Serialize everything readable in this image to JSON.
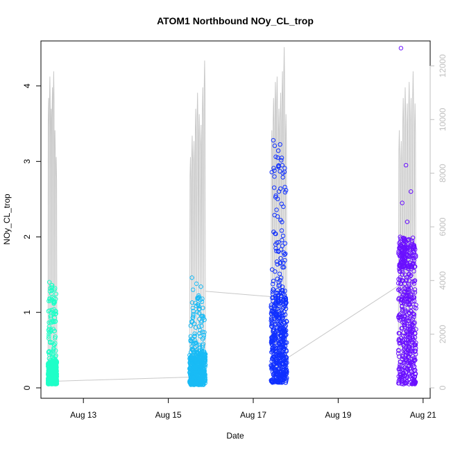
{
  "chart_data": {
    "type": "scatter",
    "title": "ATOM1 Northbound NOy_CL_trop",
    "xlabel": "Date",
    "ylabel": "NOy_CL_trop",
    "x_axis": {
      "type": "date",
      "range": [
        "2016-08-12T00:00",
        "2016-08-21T04:00"
      ],
      "ticks": [
        {
          "value": "2016-08-13",
          "label": "Aug 13"
        },
        {
          "value": "2016-08-15",
          "label": "Aug 15"
        },
        {
          "value": "2016-08-17",
          "label": "Aug 17"
        },
        {
          "value": "2016-08-19",
          "label": "Aug 19"
        },
        {
          "value": "2016-08-21",
          "label": "Aug 21"
        }
      ]
    },
    "y_axis": {
      "range": [
        0,
        4.55
      ],
      "ticks": [
        {
          "value": 0,
          "label": "0"
        },
        {
          "value": 1,
          "label": "1"
        },
        {
          "value": 2,
          "label": "2"
        },
        {
          "value": 3,
          "label": "3"
        },
        {
          "value": 4,
          "label": "4"
        }
      ]
    },
    "y2_axis": {
      "color": "#bfbfbf",
      "range": [
        0,
        12800
      ],
      "ticks": [
        {
          "value": 0,
          "label": "0"
        },
        {
          "value": 2000,
          "label": "2000"
        },
        {
          "value": 4000,
          "label": "4000"
        },
        {
          "value": 6000,
          "label": "6000"
        },
        {
          "value": 8000,
          "label": "8000"
        },
        {
          "value": 10000,
          "label": "10000"
        },
        {
          "value": 12000,
          "label": "12000"
        }
      ]
    },
    "series": [
      {
        "kind": "altitude-line",
        "axis": "y2",
        "color": "#c8c8c8",
        "segments": [
          {
            "t0": "2016-08-12T04:00",
            "t1": "2016-08-12T09:00",
            "peaks": [
              10800,
              11600,
              10400,
              11200,
              11800,
              9600,
              8600
            ]
          },
          {
            "t0": "2016-08-15T12:00",
            "t1": "2016-08-15T21:00",
            "peaks": [
              8600,
              9400,
              9200,
              10400,
              11000,
              10200,
              9800,
              11200,
              12200
            ]
          },
          {
            "t0": "2016-08-17T10:00",
            "t1": "2016-08-17T19:00",
            "peaks": [
              9600,
              10800,
              11400,
              11600,
              10400,
              11000,
              11800,
              12700,
              10200
            ]
          },
          {
            "t0": "2016-08-20T10:00",
            "t1": "2016-08-20T20:00",
            "peaks": [
              9600,
              9200,
              10800,
              11200,
              10600,
              11400,
              10800,
              11800,
              10600
            ]
          }
        ],
        "connectors": [
          {
            "x0": "2016-08-12T09:00",
            "y0": 250,
            "x1": "2016-08-15T12:00",
            "y1": 400
          },
          {
            "x0": "2016-08-15T21:00",
            "y0": 3600,
            "x1": "2016-08-17T10:00",
            "y1": 3400
          },
          {
            "x0": "2016-08-17T19:00",
            "y0": 1100,
            "x1": "2016-08-20T10:00",
            "y1": 3800
          }
        ]
      },
      {
        "kind": "points",
        "axis": "y",
        "color": "#1fffc8",
        "t0": "2016-08-12T04:00",
        "t1": "2016-08-12T09:00",
        "base": [
          0.05,
          0.35
        ],
        "upper": [
          0.35,
          1.38
        ],
        "outliers": [
          1.4,
          1.33,
          1.3,
          1.28,
          1.2,
          1.14,
          0.95,
          0.88
        ]
      },
      {
        "kind": "points",
        "axis": "y",
        "color": "#19bbf5",
        "t0": "2016-08-15T12:00",
        "t1": "2016-08-15T21:00",
        "base": [
          0.04,
          0.45
        ],
        "upper": [
          0.45,
          1.25
        ],
        "outliers": [
          1.46,
          1.38,
          1.34,
          1.3,
          1.18,
          0.95,
          0.85
        ]
      },
      {
        "kind": "points",
        "axis": "y",
        "color": "#1030ff",
        "t0": "2016-08-17T10:00",
        "t1": "2016-08-17T19:00",
        "base": [
          0.07,
          1.2
        ],
        "upper": [
          1.2,
          3.3
        ],
        "outliers": [
          3.28,
          3.05,
          2.95,
          2.8,
          2.6,
          2.4,
          1.9,
          1.65
        ]
      },
      {
        "kind": "points",
        "axis": "y",
        "color": "#6a10ff",
        "t0": "2016-08-20T10:00",
        "t1": "2016-08-20T20:00",
        "base": [
          0.05,
          1.9
        ],
        "upper": [
          1.6,
          2.0
        ],
        "outliers": [
          4.5,
          2.95,
          2.6,
          2.45,
          2.2,
          1.95,
          1.7
        ]
      }
    ]
  }
}
